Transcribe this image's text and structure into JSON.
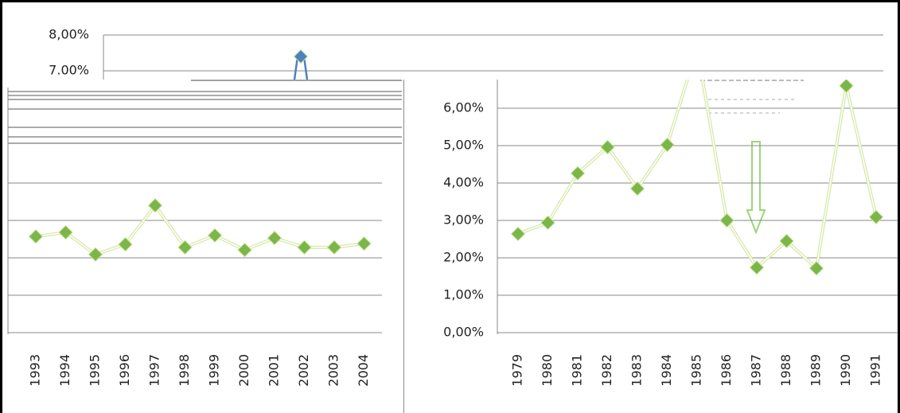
{
  "chart_data": [
    {
      "type": "line",
      "ylim": [
        6.4,
        8.5
      ],
      "yticks": [
        {
          "value": 8,
          "label": "8,00%"
        },
        {
          "value": 7,
          "label": "7.00%"
        }
      ],
      "series": [
        {
          "color": "#4f81bd",
          "values": [
            7.4
          ]
        }
      ]
    },
    {
      "type": "line",
      "categories": [
        "1993",
        "1994",
        "1995",
        "1996",
        "1997",
        "1998",
        "1999",
        "2000",
        "2001",
        "2002",
        "2003",
        "2004"
      ],
      "series": [
        {
          "color": "#7ab648",
          "values": [
            2.57,
            2.68,
            2.09,
            2.36,
            3.4,
            2.28,
            2.6,
            2.21,
            2.53,
            2.28,
            2.28,
            2.38
          ]
        }
      ],
      "ylim": [
        0,
        6.6
      ],
      "grid": true
    },
    {
      "type": "line",
      "categories": [
        "1979",
        "1980",
        "1981",
        "1982",
        "1983",
        "1984",
        "1985",
        "1986",
        "1987",
        "1988",
        "1989",
        "1990",
        "1991"
      ],
      "series": [
        {
          "color": "#7ab648",
          "values": [
            2.64,
            2.94,
            4.26,
            4.96,
            3.85,
            5.02,
            7.6,
            3.0,
            1.74,
            2.45,
            1.72,
            6.6,
            3.09
          ]
        }
      ],
      "ylim": [
        0,
        6.6
      ],
      "yticks": [
        {
          "value": 0,
          "label": "0,00%"
        },
        {
          "value": 1,
          "label": "1,00%"
        },
        {
          "value": 2,
          "label": "2,00%"
        },
        {
          "value": 3,
          "label": "3,00%"
        },
        {
          "value": 4,
          "label": "4,00%"
        },
        {
          "value": 5,
          "label": "5,00%"
        },
        {
          "value": 6,
          "label": "6,00%"
        }
      ],
      "grid": true
    }
  ]
}
